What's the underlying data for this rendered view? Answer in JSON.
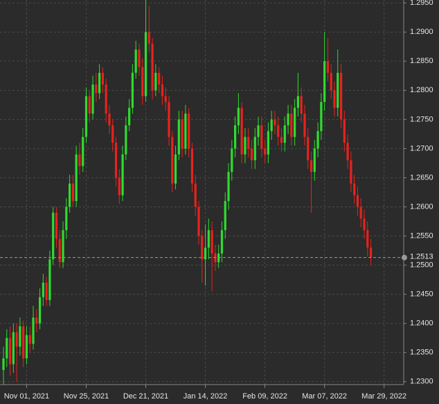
{
  "chart_data": {
    "type": "candlestick",
    "up_color": "#2fdc2f",
    "down_color": "#e8221e",
    "grid": true,
    "ylim": [
      1.2295,
      1.2955
    ],
    "yticks": [
      {
        "value": 1.23,
        "label": "1.2300"
      },
      {
        "value": 1.235,
        "label": "1.2350"
      },
      {
        "value": 1.24,
        "label": "1.2400"
      },
      {
        "value": 1.245,
        "label": "1.2450"
      },
      {
        "value": 1.25,
        "label": "1.2500"
      },
      {
        "value": 1.255,
        "label": "1.2550"
      },
      {
        "value": 1.26,
        "label": "1.2600"
      },
      {
        "value": 1.265,
        "label": "1.2650"
      },
      {
        "value": 1.27,
        "label": "1.2700"
      },
      {
        "value": 1.275,
        "label": "1.2750"
      },
      {
        "value": 1.28,
        "label": "1.2800"
      },
      {
        "value": 1.285,
        "label": "1.2850"
      },
      {
        "value": 1.29,
        "label": "1.2900"
      },
      {
        "value": 1.295,
        "label": "1.2950"
      }
    ],
    "last_price": {
      "value": 1.2513,
      "label": "1.2513"
    },
    "categories": [
      null,
      null,
      null,
      null,
      null,
      null,
      null,
      "Nov 01, 2021",
      null,
      null,
      null,
      null,
      null,
      null,
      null,
      null,
      null,
      null,
      null,
      null,
      null,
      null,
      null,
      null,
      null,
      "Nov 25, 2021",
      null,
      null,
      null,
      null,
      null,
      null,
      null,
      null,
      null,
      null,
      null,
      null,
      null,
      null,
      null,
      null,
      null,
      "Dec 21, 2021",
      null,
      null,
      null,
      null,
      null,
      null,
      null,
      null,
      null,
      null,
      null,
      null,
      null,
      null,
      null,
      null,
      null,
      "Jan 14, 2022",
      null,
      null,
      null,
      null,
      null,
      null,
      null,
      null,
      null,
      null,
      null,
      null,
      null,
      null,
      null,
      null,
      null,
      "Feb 09, 2022",
      null,
      null,
      null,
      null,
      null,
      null,
      null,
      null,
      null,
      null,
      null,
      null,
      null,
      null,
      null,
      null,
      null,
      "Mar 07, 2022",
      null,
      null,
      null,
      null,
      null,
      null,
      null,
      null,
      null,
      null,
      null,
      null,
      null,
      null,
      null,
      null,
      null,
      "Mar 29, 2022"
    ],
    "open": [
      1.232,
      1.234,
      1.2375,
      1.233,
      1.2385,
      1.236,
      1.2395,
      1.234,
      1.238,
      1.2365,
      1.241,
      1.24,
      1.2445,
      1.247,
      1.244,
      1.251,
      1.259,
      1.2545,
      1.2505,
      1.256,
      1.26,
      1.264,
      1.261,
      1.269,
      1.267,
      1.272,
      1.279,
      1.276,
      1.281,
      1.2795,
      1.283,
      1.281,
      1.276,
      1.274,
      1.271,
      1.265,
      1.262,
      1.269,
      1.274,
      1.277,
      1.283,
      1.287,
      1.284,
      1.279,
      1.29,
      1.288,
      1.28,
      1.283,
      1.281,
      1.279,
      1.278,
      1.272,
      1.264,
      1.269,
      1.275,
      1.27,
      1.276,
      1.27,
      1.264,
      1.26,
      1.255,
      1.251,
      1.253,
      1.256,
      1.252,
      1.2505,
      1.252,
      1.256,
      1.261,
      1.266,
      1.27,
      1.274,
      1.277,
      1.269,
      1.272,
      1.27,
      1.268,
      1.272,
      1.274,
      1.27,
      1.269,
      1.273,
      1.275,
      1.274,
      1.272,
      1.271,
      1.274,
      1.276,
      1.272,
      1.277,
      1.279,
      1.276,
      1.272,
      1.268,
      1.266,
      1.27,
      1.273,
      1.278,
      1.285,
      1.283,
      1.28,
      1.277,
      1.283,
      1.275,
      1.271,
      1.268,
      1.264,
      1.262,
      1.26,
      1.258,
      1.256,
      1.253,
      null,
      null,
      null,
      null
    ],
    "high": [
      1.236,
      1.239,
      1.2395,
      1.24,
      1.24,
      1.241,
      1.2405,
      1.2395,
      1.2395,
      1.243,
      1.2425,
      1.246,
      1.2485,
      1.248,
      1.2525,
      1.26,
      1.26,
      1.256,
      1.2575,
      1.2615,
      1.2655,
      1.2655,
      1.2705,
      1.271,
      1.2735,
      1.2805,
      1.28,
      1.2825,
      1.283,
      1.2845,
      1.284,
      1.282,
      1.2775,
      1.275,
      1.272,
      1.2665,
      1.2705,
      1.2755,
      1.2785,
      1.2845,
      1.2885,
      1.288,
      1.2855,
      1.2965,
      1.2945,
      1.289,
      1.2845,
      1.284,
      1.2825,
      1.2805,
      1.279,
      1.273,
      1.2705,
      1.2765,
      1.2765,
      1.2775,
      1.277,
      1.271,
      1.2655,
      1.261,
      1.256,
      1.257,
      1.258,
      1.2575,
      1.2535,
      1.2535,
      1.2575,
      1.2625,
      1.2675,
      1.2715,
      1.2755,
      1.2795,
      1.278,
      1.2735,
      1.2735,
      1.2715,
      1.2735,
      1.2755,
      1.2755,
      1.2715,
      1.2745,
      1.2765,
      1.2765,
      1.2755,
      1.2735,
      1.2755,
      1.2775,
      1.2775,
      1.2785,
      1.283,
      1.2805,
      1.2775,
      1.2735,
      1.2695,
      1.2715,
      1.2745,
      1.2795,
      1.29,
      1.289,
      1.2845,
      1.2815,
      1.287,
      1.2845,
      1.2765,
      1.2725,
      1.2695,
      1.2655,
      1.2635,
      1.2615,
      1.2595,
      1.2575,
      1.2545,
      null,
      null,
      null,
      null
    ],
    "low": [
      1.2295,
      1.2325,
      1.231,
      1.2315,
      1.23,
      1.2345,
      1.2325,
      1.233,
      1.235,
      1.2355,
      1.2385,
      1.239,
      1.243,
      1.243,
      1.243,
      1.25,
      1.253,
      1.2495,
      1.2495,
      1.2545,
      1.259,
      1.26,
      1.26,
      1.2655,
      1.266,
      1.271,
      1.2745,
      1.275,
      1.278,
      1.2785,
      1.2795,
      1.2745,
      1.2725,
      1.2695,
      1.2635,
      1.2605,
      1.261,
      1.268,
      1.273,
      1.276,
      1.282,
      1.2825,
      1.2775,
      1.278,
      1.2865,
      1.2785,
      1.279,
      1.2795,
      1.2775,
      1.2765,
      1.2705,
      1.2625,
      1.263,
      1.268,
      1.2685,
      1.269,
      1.2685,
      1.2625,
      1.2585,
      1.2535,
      1.247,
      1.2465,
      1.251,
      1.2455,
      1.249,
      1.2495,
      1.2505,
      1.2545,
      1.2595,
      1.2645,
      1.2685,
      1.2725,
      1.2675,
      1.2675,
      1.2685,
      1.2665,
      1.2665,
      1.2705,
      1.2685,
      1.2675,
      1.2675,
      1.2715,
      1.2725,
      1.2705,
      1.2695,
      1.2695,
      1.2725,
      1.2705,
      1.2705,
      1.2755,
      1.2745,
      1.2705,
      1.2665,
      1.259,
      1.2645,
      1.2685,
      1.2715,
      1.2765,
      1.2815,
      1.2785,
      1.2755,
      1.2755,
      1.2735,
      1.2695,
      1.2665,
      1.2625,
      1.2605,
      1.2585,
      1.2565,
      1.2545,
      1.2515,
      1.25,
      null,
      null,
      null,
      null
    ],
    "close": [
      1.234,
      1.2375,
      1.233,
      1.2385,
      1.236,
      1.2395,
      1.234,
      1.238,
      1.2365,
      1.241,
      1.24,
      1.2445,
      1.247,
      1.244,
      1.251,
      1.259,
      1.2545,
      1.2505,
      1.256,
      1.26,
      1.264,
      1.261,
      1.269,
      1.267,
      1.272,
      1.279,
      1.276,
      1.281,
      1.2795,
      1.283,
      1.281,
      1.276,
      1.274,
      1.271,
      1.265,
      1.262,
      1.269,
      1.274,
      1.277,
      1.283,
      1.287,
      1.284,
      1.279,
      1.29,
      1.288,
      1.28,
      1.283,
      1.281,
      1.279,
      1.278,
      1.272,
      1.264,
      1.269,
      1.275,
      1.27,
      1.276,
      1.27,
      1.264,
      1.26,
      1.255,
      1.251,
      1.253,
      1.256,
      1.252,
      1.2505,
      1.252,
      1.256,
      1.261,
      1.266,
      1.27,
      1.274,
      1.277,
      1.269,
      1.272,
      1.27,
      1.268,
      1.272,
      1.274,
      1.27,
      1.269,
      1.273,
      1.275,
      1.274,
      1.272,
      1.271,
      1.274,
      1.276,
      1.272,
      1.277,
      1.279,
      1.276,
      1.272,
      1.268,
      1.266,
      1.27,
      1.273,
      1.278,
      1.285,
      1.283,
      1.28,
      1.277,
      1.283,
      1.275,
      1.271,
      1.268,
      1.264,
      1.262,
      1.26,
      1.258,
      1.256,
      1.253,
      1.2513,
      null,
      null,
      null,
      null
    ]
  }
}
